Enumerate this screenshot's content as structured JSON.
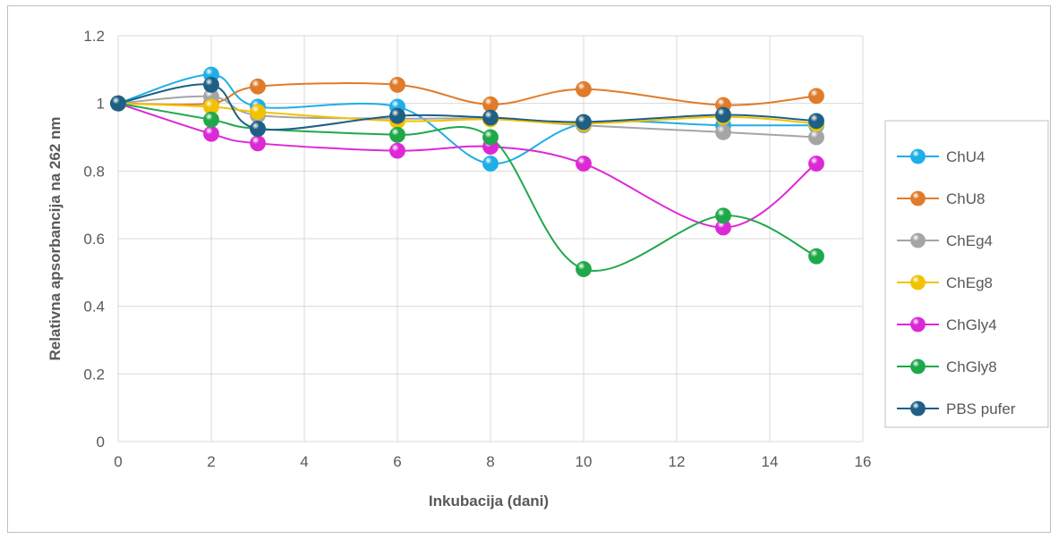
{
  "chart_data": {
    "type": "line",
    "xlabel": "Inkubacija (dani)",
    "ylabel": "Relativna apsorbancija na 262 nm",
    "xlim": [
      0,
      16
    ],
    "ylim": [
      0,
      1.2
    ],
    "x_ticks": [
      "0",
      "2",
      "4",
      "6",
      "8",
      "10",
      "12",
      "14",
      "16"
    ],
    "y_ticks": [
      "0",
      "0.2",
      "0.4",
      "0.6",
      "0.8",
      "1",
      "1.2"
    ],
    "grid": true,
    "smooth": true,
    "legend_position": "right",
    "x": [
      0,
      2,
      3,
      6,
      8,
      10,
      13,
      15
    ],
    "series": [
      {
        "name": "ChU4",
        "color": "#1eaee8",
        "values": [
          1.0,
          1.085,
          0.99,
          0.99,
          0.822,
          0.94,
          0.935,
          0.935
        ]
      },
      {
        "name": "ChU8",
        "color": "#e07b2a",
        "values": [
          1.0,
          1.0,
          1.05,
          1.055,
          0.997,
          1.042,
          0.995,
          1.022
        ]
      },
      {
        "name": "ChEg4",
        "color": "#a5a5a5",
        "values": [
          1.0,
          1.02,
          0.965,
          0.955,
          0.955,
          0.935,
          0.915,
          0.9
        ]
      },
      {
        "name": "ChEg8",
        "color": "#f2c200",
        "values": [
          1.0,
          0.99,
          0.975,
          0.948,
          0.953,
          0.94,
          0.96,
          0.94
        ]
      },
      {
        "name": "ChGly4",
        "color": "#dd28d6",
        "values": [
          1.0,
          0.91,
          0.882,
          0.86,
          0.872,
          0.822,
          0.633,
          0.822
        ]
      },
      {
        "name": "ChGly8",
        "color": "#1fa84a",
        "values": [
          1.0,
          0.952,
          0.925,
          0.907,
          0.9,
          0.51,
          0.668,
          0.548
        ]
      },
      {
        "name": "PBS pufer",
        "color": "#1f5f85",
        "values": [
          1.0,
          1.055,
          0.925,
          0.963,
          0.958,
          0.945,
          0.966,
          0.948
        ]
      }
    ]
  }
}
